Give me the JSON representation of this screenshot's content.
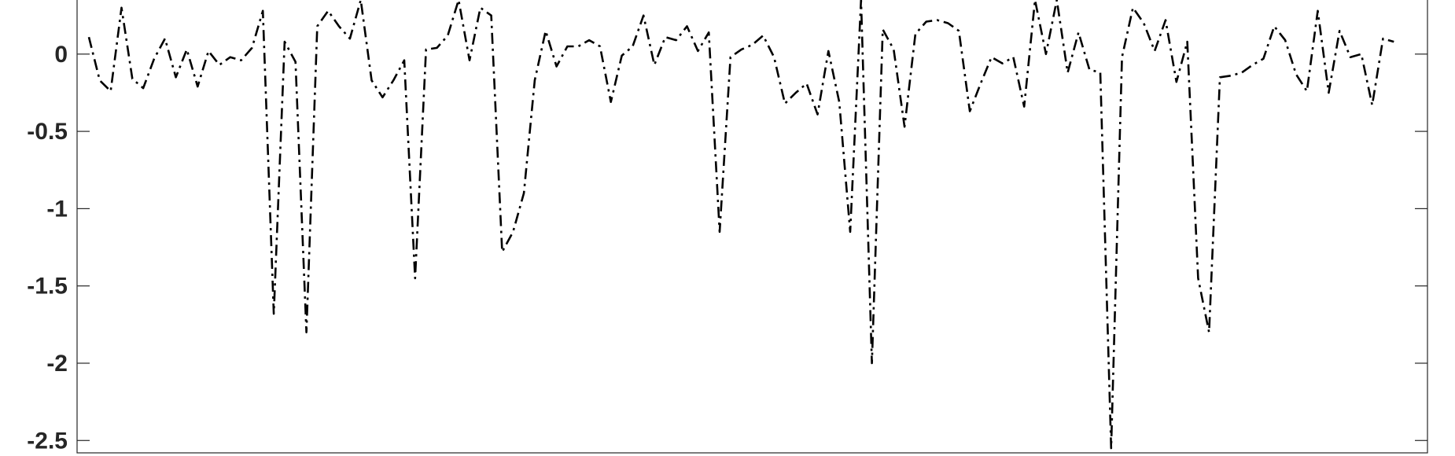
{
  "chart_data": {
    "type": "line",
    "title": "",
    "xlabel": "",
    "ylabel": "",
    "ylim": [
      -2.58,
      0.35
    ],
    "xlim": [
      0,
      122
    ],
    "x_ticks_visible": false,
    "grid": false,
    "y_ticks": [
      {
        "value": 0,
        "label": "0"
      },
      {
        "value": -0.5,
        "label": "-0.5"
      },
      {
        "value": -1,
        "label": "-1"
      },
      {
        "value": -1.5,
        "label": "-1.5"
      },
      {
        "value": -2,
        "label": "-2"
      },
      {
        "value": -2.5,
        "label": "-2.5"
      }
    ],
    "series": [
      {
        "line_style": "dash-dot",
        "color": "#000000",
        "y": [
          0.11,
          -0.17,
          -0.24,
          0.3,
          -0.16,
          -0.22,
          -0.03,
          0.1,
          -0.15,
          0.03,
          -0.21,
          0.02,
          -0.07,
          -0.02,
          -0.04,
          0.04,
          0.28,
          -1.68,
          0.08,
          -0.05,
          -1.8,
          0.18,
          0.28,
          0.18,
          0.1,
          0.35,
          -0.17,
          -0.28,
          -0.17,
          -0.04,
          -1.45,
          0.03,
          0.04,
          0.12,
          0.35,
          -0.04,
          0.3,
          0.25,
          -1.28,
          -1.15,
          -0.9,
          -0.17,
          0.15,
          -0.08,
          0.05,
          0.05,
          0.09,
          0.05,
          -0.31,
          -0.01,
          0.05,
          0.25,
          -0.07,
          0.11,
          0.09,
          0.18,
          0.02,
          0.14,
          -1.15,
          -0.02,
          0.03,
          0.06,
          0.12,
          -0.02,
          -0.32,
          -0.25,
          -0.19,
          -0.39,
          0.02,
          -0.31,
          -1.15,
          0.35,
          -2.0,
          0.16,
          0.03,
          -0.47,
          0.13,
          0.21,
          0.22,
          0.2,
          0.15,
          -0.37,
          -0.19,
          -0.02,
          -0.06,
          -0.02,
          -0.34,
          0.35,
          0.0,
          0.35,
          -0.12,
          0.14,
          -0.1,
          -0.12,
          -2.55,
          -0.02,
          0.3,
          0.2,
          0.02,
          0.22,
          -0.18,
          0.08,
          -1.45,
          -1.8,
          -0.15,
          -0.14,
          -0.12,
          -0.07,
          -0.03,
          0.18,
          0.09,
          -0.13,
          -0.24,
          0.28,
          -0.25,
          0.15,
          -0.02,
          0.0,
          -0.33,
          0.1,
          0.08
        ]
      }
    ]
  }
}
